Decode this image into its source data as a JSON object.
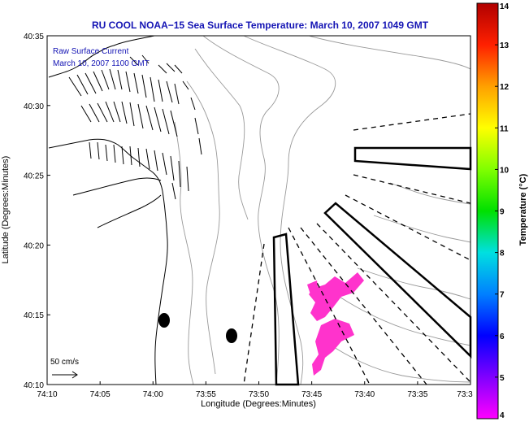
{
  "chart_data": {
    "type": "map",
    "title": "RU COOL  NOAA−15  Sea Surface Temperature:  March 10, 2007 1049 GMT",
    "xlabel": "Longitude (Degrees:Minutes)",
    "ylabel": "Latitude (Degrees:Minutes)",
    "xlim": [
      -74.1667,
      -73.5
    ],
    "ylim": [
      40.1667,
      40.5833
    ],
    "x_ticks": [
      {
        "value": -74.1667,
        "label": "74:10"
      },
      {
        "value": -74.0833,
        "label": "74:05"
      },
      {
        "value": -74.0,
        "label": "74:00"
      },
      {
        "value": -73.9167,
        "label": "73:55"
      },
      {
        "value": -73.8333,
        "label": "73:50"
      },
      {
        "value": -73.75,
        "label": "73:45"
      },
      {
        "value": -73.6667,
        "label": "73:40"
      },
      {
        "value": -73.5833,
        "label": "73:35"
      },
      {
        "value": -73.5,
        "label": "73:3"
      }
    ],
    "y_ticks": [
      {
        "value": 40.1667,
        "label": "40:10"
      },
      {
        "value": 40.25,
        "label": "40:15"
      },
      {
        "value": 40.3333,
        "label": "40:20"
      },
      {
        "value": 40.4167,
        "label": "40:25"
      },
      {
        "value": 40.5,
        "label": "40:30"
      },
      {
        "value": 40.5833,
        "label": "40:35"
      }
    ],
    "annotations": [
      "Raw Surface Current",
      "March 10, 2007 1100 GMT"
    ],
    "scale_label": "50 cm/s",
    "colorbar": {
      "label": "Temperature (°C)",
      "min": 4,
      "max": 14,
      "ticks": [
        "4",
        "5",
        "6",
        "7",
        "8",
        "9",
        "10",
        "11",
        "12",
        "13",
        "14"
      ],
      "stops": [
        "#ff00ff",
        "#8000ff",
        "#0000ff",
        "#0080ff",
        "#00e0e0",
        "#00e000",
        "#80ff00",
        "#ffff00",
        "#ffa000",
        "#ff2000",
        "#b00000"
      ]
    },
    "colors": {
      "title": "#1414b4",
      "annotation": "#1414b4",
      "sst_patch": "#ff33cc",
      "contour": "#888888"
    }
  }
}
